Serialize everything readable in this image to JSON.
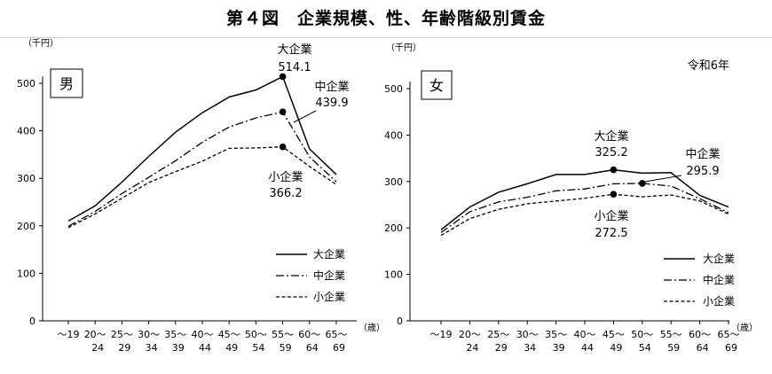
{
  "title": "第４図　企業規模、性、年齢階級別賃金",
  "chart_data": [
    {
      "type": "line",
      "panel_label": "男",
      "y_unit_label": "（千円）",
      "x_unit_label": "（歳）",
      "subtitle": "",
      "ylim": [
        0,
        500
      ],
      "yticks": [
        0,
        100,
        200,
        300,
        400,
        500
      ],
      "categories": [
        [
          "～19",
          ""
        ],
        [
          "20～",
          "24"
        ],
        [
          "25～",
          "29"
        ],
        [
          "30～",
          "34"
        ],
        [
          "35～",
          "39"
        ],
        [
          "40～",
          "44"
        ],
        [
          "45～",
          "49"
        ],
        [
          "50～",
          "54"
        ],
        [
          "55～",
          "59"
        ],
        [
          "60～",
          "64"
        ],
        [
          "65～",
          "69"
        ]
      ],
      "series": [
        {
          "name": "大企業",
          "style": "solid",
          "values": [
            210,
            242,
            292,
            346,
            397,
            438,
            471,
            486,
            514.1,
            362,
            308
          ]
        },
        {
          "name": "中企業",
          "style": "dashdot",
          "values": [
            199,
            230,
            268,
            302,
            337,
            376,
            408,
            427,
            439.9,
            345,
            293
          ]
        },
        {
          "name": "小企業",
          "style": "dashed",
          "values": [
            196,
            225,
            258,
            291,
            314,
            336,
            363,
            364,
            366.2,
            325,
            287
          ]
        }
      ],
      "annotations": [
        {
          "series": "大企業",
          "index": 8,
          "name": "大企業",
          "value": "514.1"
        },
        {
          "series": "中企業",
          "index": 8,
          "name": "中企業",
          "value": "439.9"
        },
        {
          "series": "小企業",
          "index": 8,
          "name": "小企業",
          "value": "366.2"
        }
      ],
      "legend": "bottom-right",
      "grid": false
    },
    {
      "type": "line",
      "panel_label": "女",
      "y_unit_label": "（千円）",
      "x_unit_label": "（歳）",
      "subtitle": "令和6年",
      "ylim": [
        0,
        500
      ],
      "yticks": [
        0,
        100,
        200,
        300,
        400,
        500
      ],
      "categories": [
        [
          "～19",
          ""
        ],
        [
          "20～",
          "24"
        ],
        [
          "25～",
          "29"
        ],
        [
          "30～",
          "34"
        ],
        [
          "35～",
          "39"
        ],
        [
          "40～",
          "44"
        ],
        [
          "45～",
          "49"
        ],
        [
          "50～",
          "54"
        ],
        [
          "55～",
          "59"
        ],
        [
          "60～",
          "64"
        ],
        [
          "65～",
          "69"
        ]
      ],
      "series": [
        {
          "name": "大企業",
          "style": "solid",
          "values": [
            196,
            245,
            277,
            295,
            315,
            315,
            325.2,
            318,
            319,
            270,
            245
          ]
        },
        {
          "name": "中企業",
          "style": "dashdot",
          "values": [
            190,
            235,
            256,
            266,
            280,
            284,
            295,
            295.9,
            290,
            263,
            233
          ]
        },
        {
          "name": "小企業",
          "style": "dashed",
          "values": [
            184,
            220,
            240,
            252,
            258,
            264,
            272.5,
            267,
            271,
            258,
            230
          ]
        }
      ],
      "annotations": [
        {
          "series": "大企業",
          "index": 6,
          "name": "大企業",
          "value": "325.2"
        },
        {
          "series": "中企業",
          "index": 7,
          "name": "中企業",
          "value": "295.9"
        },
        {
          "series": "小企業",
          "index": 6,
          "name": "小企業",
          "value": "272.5"
        }
      ],
      "legend": "bottom-right",
      "grid": false
    }
  ]
}
